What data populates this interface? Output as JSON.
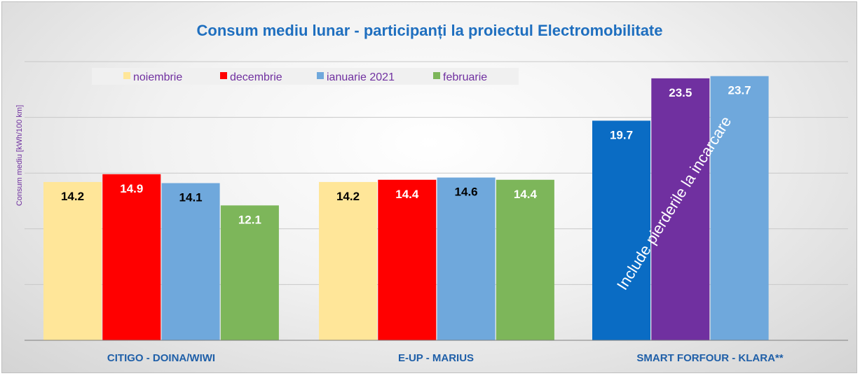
{
  "chart_data": {
    "type": "bar",
    "title": "Consum mediu lunar - participanți la proiectul Electromobilitate",
    "ylabel": "Consum mediu [kWh/100 km]",
    "xlabel": "",
    "ylim": [
      0,
      25
    ],
    "gridlines": [
      5,
      10,
      15,
      20,
      25
    ],
    "grid": true,
    "legend_position": "top-left",
    "categories": [
      "CITIGO - DOINA/WIWI",
      "E-UP - MARIUS",
      "SMART FORFOUR - KLARA**"
    ],
    "series": [
      {
        "name": "noiembrie",
        "color": "#ffe699",
        "values": [
          14.2,
          14.2,
          null
        ],
        "labels": [
          "14.2",
          "14.2",
          ""
        ],
        "label_color": "#000000"
      },
      {
        "name": "decembrie",
        "color": "#ff0000",
        "values": [
          14.9,
          14.4,
          null
        ],
        "labels": [
          "14.9",
          "14.4",
          ""
        ],
        "label_color": "#ffffff"
      },
      {
        "name": "ianuarie 2021",
        "color": "#6fa8dc",
        "values": [
          14.1,
          14.6,
          null
        ],
        "labels": [
          "14.1",
          "14.6",
          ""
        ],
        "label_color": "#000000"
      },
      {
        "name": "februarie",
        "color": "#7db65a",
        "values": [
          12.1,
          14.4,
          null
        ],
        "labels": [
          "12.1",
          "14.4",
          ""
        ],
        "label_color": "#ffffff"
      }
    ],
    "extra_bars": [
      {
        "category": "SMART FORFOUR - KLARA**",
        "values": [
          19.7,
          23.5,
          23.7
        ],
        "labels": [
          "19.7",
          "23.5",
          "23.7"
        ],
        "colors": [
          "#0a6cc4",
          "#7030a0",
          "#6fa8dc"
        ],
        "label_color": "#ffffff"
      }
    ],
    "annotation": "Include pierderile la incarcare"
  }
}
